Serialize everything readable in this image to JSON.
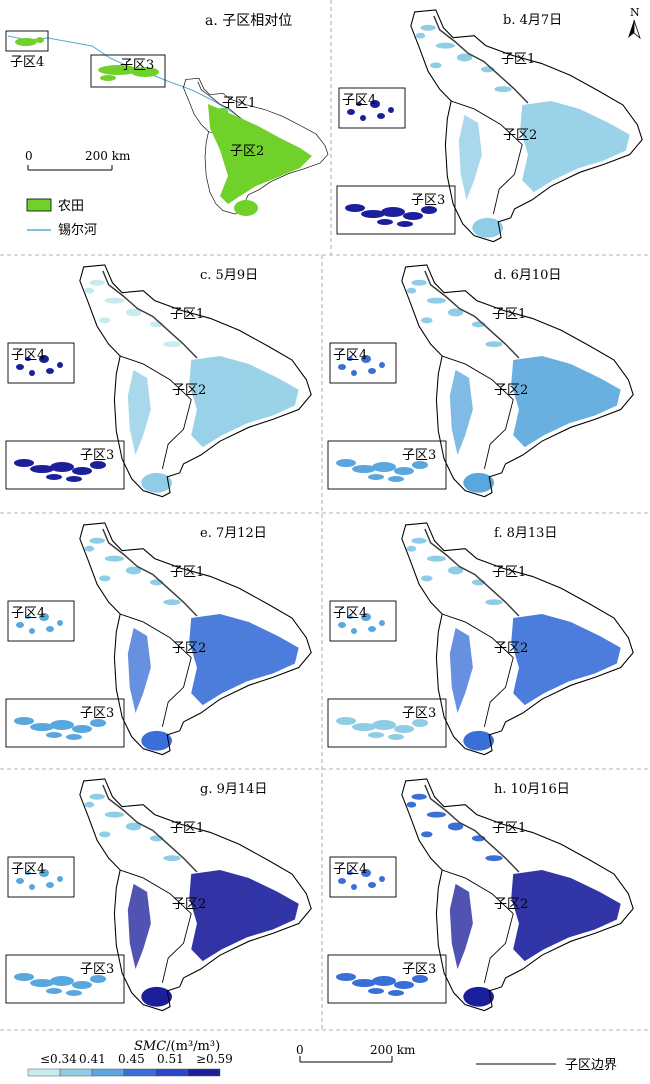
{
  "panels": [
    {
      "title": "a. 子区相对位",
      "date": null
    },
    {
      "title": "b. 4月7日",
      "date": "4月7日"
    },
    {
      "title": "c. 5月9日",
      "date": "5月9日"
    },
    {
      "title": "d. 6月10日",
      "date": "6月10日"
    },
    {
      "title": "e. 7月12日",
      "date": "7月12日"
    },
    {
      "title": "f. 8月13日",
      "date": "8月13日"
    },
    {
      "title": "g. 9月14日",
      "date": "9月14日"
    },
    {
      "title": "h. 10月16日",
      "date": "10月16日"
    }
  ],
  "subregions": [
    "子区1",
    "子区2",
    "子区3",
    "子区4"
  ],
  "panel_a": {
    "scale_zero": "0",
    "scale_km": "200 km",
    "legend_farmland": "农田",
    "legend_river": "锡尔河",
    "farmland_color": "#6fd12a",
    "river_color": "#5aa7d8"
  },
  "north_arrow": "N",
  "bottom_legend": {
    "title_italic": "SMC",
    "title_unit": "/(m³/m³)",
    "class_labels": [
      "≤0.34",
      "0.41",
      "0.45",
      "0.51",
      "≥0.59"
    ],
    "class_colors": [
      "#c6ecef",
      "#8fcde6",
      "#59a7de",
      "#3a6fd8",
      "#2a46c9",
      "#1c1f9c"
    ],
    "scale_zero": "0",
    "scale_km": "200 km",
    "boundary_label": "子区边界"
  },
  "smc_level_by_panel": {
    "b. 4月7日": {
      "子区1": 0.41,
      "子区2": 0.41,
      "子区3": 0.59,
      "子区4": 0.59
    },
    "c. 5月9日": {
      "子区1": 0.34,
      "子区2": 0.41,
      "子区3": 0.59,
      "子区4": 0.59
    },
    "d. 6月10日": {
      "子区1": 0.41,
      "子区2": 0.45,
      "子区3": 0.45,
      "子区4": 0.51
    },
    "e. 7月12日": {
      "子区1": 0.41,
      "子区2": 0.51,
      "子区3": 0.45,
      "子区4": 0.45
    },
    "f. 8月13日": {
      "子区1": 0.41,
      "子区2": 0.51,
      "子区3": 0.41,
      "子区4": 0.45
    },
    "g. 9月14日": {
      "子区1": 0.41,
      "子区2": 0.59,
      "子区3": 0.45,
      "子区4": 0.45
    },
    "h. 10月16日": {
      "子区1": 0.51,
      "子区2": 0.59,
      "子区3": 0.51,
      "子区4": 0.51
    }
  }
}
